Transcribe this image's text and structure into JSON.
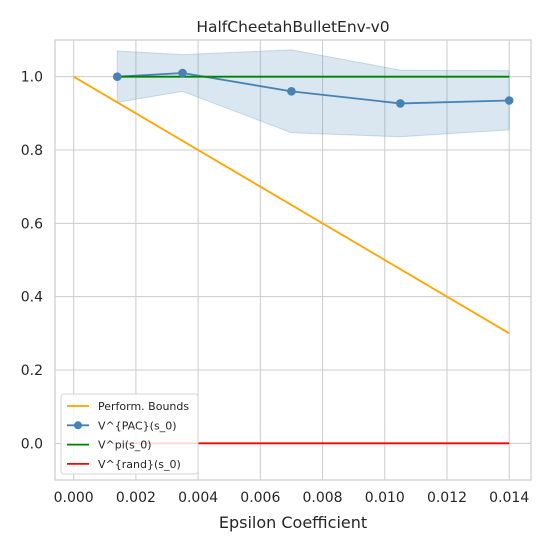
{
  "chart_data": {
    "type": "line",
    "title": "HalfCheetahBulletEnv-v0",
    "xlabel": "Epsilon Coefficient",
    "ylabel": "",
    "xlim": [
      -0.0006,
      0.0147
    ],
    "ylim": [
      -0.1,
      1.1
    ],
    "xticks": [
      0.0,
      0.002,
      0.004,
      0.006,
      0.008,
      0.01,
      0.012,
      0.014
    ],
    "xtick_labels": [
      "0.000",
      "0.002",
      "0.004",
      "0.006",
      "0.008",
      "0.010",
      "0.012",
      "0.014"
    ],
    "yticks": [
      0.0,
      0.2,
      0.4,
      0.6,
      0.8,
      1.0
    ],
    "ytick_labels": [
      "0.0",
      "0.2",
      "0.4",
      "0.6",
      "0.8",
      "1.0"
    ],
    "grid": true,
    "legend_position": "lower-left",
    "series": [
      {
        "name": "Perform. Bounds",
        "color": "#ffa500",
        "marker": false,
        "x": [
          0.0,
          0.014
        ],
        "y": [
          1.0,
          0.3
        ]
      },
      {
        "name": "V^{PAC}(s_0)",
        "color": "#4682b4",
        "marker": true,
        "x": [
          0.0014,
          0.0035,
          0.007,
          0.0105,
          0.014
        ],
        "y": [
          1.0,
          1.01,
          0.96,
          0.927,
          0.935
        ],
        "band_upper": [
          1.07,
          1.06,
          1.073,
          1.018,
          1.016
        ],
        "band_lower": [
          0.93,
          0.96,
          0.847,
          0.836,
          0.855
        ]
      },
      {
        "name": "V^pi(s_0)",
        "color": "#008000",
        "marker": false,
        "x": [
          0.0014,
          0.014
        ],
        "y": [
          1.0,
          1.0
        ]
      },
      {
        "name": "V^{rand}(s_0)",
        "color": "#ff0000",
        "marker": false,
        "x": [
          0.0014,
          0.014
        ],
        "y": [
          0.0,
          0.0
        ]
      }
    ]
  }
}
